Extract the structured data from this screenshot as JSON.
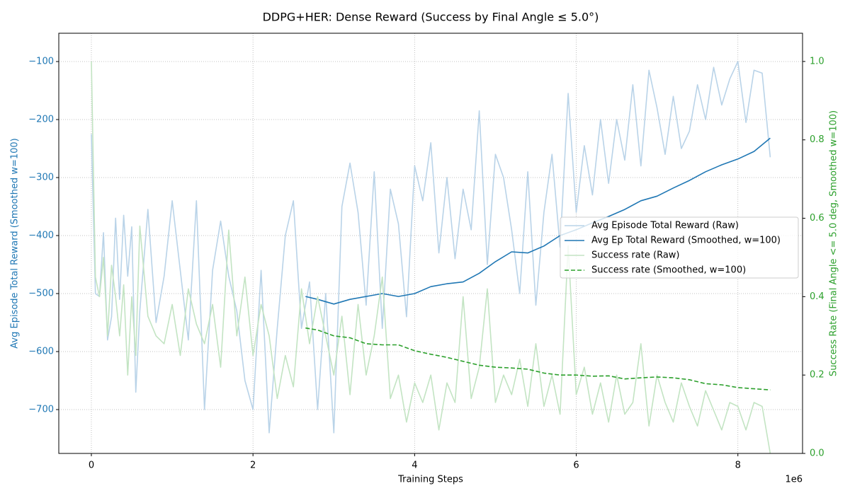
{
  "chart_data": {
    "type": "line",
    "title": "DDPG+HER: Dense Reward (Success by Final Angle ≤ 5.0°)",
    "x_label": "Training Steps",
    "x_offset_label": "1e6",
    "y_label": "Avg Episode Total Reward (Smoothed w=100)",
    "y2_label": "Success Rate (Final Angle <= 5.0 deg, Smoothed w=100)",
    "y_label_color": "#1f77b4",
    "y2_label_color": "#2ca02c",
    "grid": true,
    "legend": "center right",
    "xlim": [
      -403000,
      8800000
    ],
    "ylim": [
      -775.6,
      -51.2
    ],
    "y2lim": [
      0,
      1.072
    ],
    "xticks": [
      {
        "value": 0,
        "label": "0"
      },
      {
        "value": 2000000,
        "label": "2"
      },
      {
        "value": 4000000,
        "label": "4"
      },
      {
        "value": 6000000,
        "label": "6"
      },
      {
        "value": 8000000,
        "label": "8"
      }
    ],
    "yticks": [
      {
        "value": -700,
        "label": "−700"
      },
      {
        "value": -600,
        "label": "−600"
      },
      {
        "value": -500,
        "label": "−500"
      },
      {
        "value": -400,
        "label": "−400"
      },
      {
        "value": -300,
        "label": "−300"
      },
      {
        "value": -200,
        "label": "−200"
      },
      {
        "value": -100,
        "label": "−100"
      }
    ],
    "y2ticks": [
      {
        "value": 0,
        "label": "0.0"
      },
      {
        "value": 0.2,
        "label": "0.2"
      },
      {
        "value": 0.4,
        "label": "0.4"
      },
      {
        "value": 0.6,
        "label": "0.6"
      },
      {
        "value": 0.8,
        "label": "0.8"
      },
      {
        "value": 1,
        "label": "1.0"
      }
    ],
    "series": [
      {
        "name": "Avg Episode Total Reward (Raw)",
        "color": "#b9d3e8",
        "axis": "y",
        "linestyle": "solid",
        "x": [
          0,
          50000,
          100000,
          150000,
          200000,
          250000,
          300000,
          350000,
          400000,
          450000,
          500000,
          550000,
          600000,
          700000,
          800000,
          900000,
          1000000,
          1100000,
          1200000,
          1300000,
          1400000,
          1500000,
          1600000,
          1700000,
          1800000,
          1900000,
          2000000,
          2100000,
          2200000,
          2300000,
          2400000,
          2500000,
          2600000,
          2700000,
          2800000,
          2900000,
          3000000,
          3100000,
          3200000,
          3300000,
          3400000,
          3500000,
          3600000,
          3700000,
          3800000,
          3900000,
          4000000,
          4100000,
          4200000,
          4300000,
          4400000,
          4500000,
          4600000,
          4700000,
          4800000,
          4900000,
          5000000,
          5100000,
          5200000,
          5300000,
          5400000,
          5500000,
          5600000,
          5700000,
          5800000,
          5900000,
          6000000,
          6100000,
          6200000,
          6300000,
          6400000,
          6500000,
          6600000,
          6700000,
          6800000,
          6900000,
          7000000,
          7100000,
          7200000,
          7300000,
          7400000,
          7500000,
          7600000,
          7700000,
          7800000,
          7900000,
          8000000,
          8100000,
          8200000,
          8300000,
          8400000
        ],
        "values": [
          -225,
          -500,
          -505,
          -395,
          -580,
          -540,
          -370,
          -510,
          -365,
          -470,
          -385,
          -670,
          -530,
          -355,
          -550,
          -470,
          -340,
          -460,
          -580,
          -340,
          -700,
          -460,
          -375,
          -470,
          -530,
          -650,
          -700,
          -460,
          -740,
          -560,
          -400,
          -340,
          -560,
          -480,
          -700,
          -500,
          -740,
          -350,
          -275,
          -360,
          -520,
          -290,
          -560,
          -320,
          -380,
          -540,
          -280,
          -340,
          -240,
          -430,
          -300,
          -440,
          -320,
          -390,
          -185,
          -450,
          -260,
          -300,
          -390,
          -500,
          -290,
          -520,
          -360,
          -260,
          -420,
          -155,
          -360,
          -245,
          -330,
          -200,
          -310,
          -200,
          -270,
          -140,
          -280,
          -115,
          -180,
          -260,
          -160,
          -250,
          -220,
          -140,
          -200,
          -110,
          -175,
          -130,
          -100,
          -205,
          -115,
          -120,
          -265
        ]
      },
      {
        "name": "Avg Ep Total Reward (Smoothed, w=100)",
        "color": "#1f77b4",
        "axis": "y",
        "linestyle": "solid",
        "x": [
          2650000,
          2800000,
          3000000,
          3200000,
          3400000,
          3600000,
          3800000,
          4000000,
          4200000,
          4400000,
          4600000,
          4800000,
          5000000,
          5200000,
          5400000,
          5600000,
          5800000,
          6000000,
          6200000,
          6400000,
          6600000,
          6800000,
          7000000,
          7200000,
          7400000,
          7600000,
          7800000,
          8000000,
          8200000,
          8400000
        ],
        "values": [
          -505,
          -510,
          -518,
          -510,
          -505,
          -500,
          -505,
          -500,
          -488,
          -483,
          -480,
          -465,
          -445,
          -428,
          -430,
          -418,
          -400,
          -390,
          -378,
          -367,
          -355,
          -340,
          -332,
          -318,
          -305,
          -290,
          -278,
          -268,
          -255,
          -232
        ]
      },
      {
        "name": "Success rate (Raw)",
        "color": "#c3e4c3",
        "axis": "y2",
        "linestyle": "solid",
        "x": [
          0,
          50000,
          100000,
          150000,
          200000,
          250000,
          300000,
          350000,
          400000,
          450000,
          500000,
          550000,
          600000,
          700000,
          800000,
          900000,
          1000000,
          1100000,
          1200000,
          1300000,
          1400000,
          1500000,
          1600000,
          1700000,
          1800000,
          1900000,
          2000000,
          2100000,
          2200000,
          2300000,
          2400000,
          2500000,
          2600000,
          2700000,
          2800000,
          2900000,
          3000000,
          3100000,
          3200000,
          3300000,
          3400000,
          3500000,
          3600000,
          3700000,
          3800000,
          3900000,
          4000000,
          4100000,
          4200000,
          4300000,
          4400000,
          4500000,
          4600000,
          4700000,
          4800000,
          4900000,
          5000000,
          5100000,
          5200000,
          5300000,
          5400000,
          5500000,
          5600000,
          5700000,
          5800000,
          5900000,
          6000000,
          6100000,
          6200000,
          6300000,
          6400000,
          6500000,
          6600000,
          6700000,
          6800000,
          6900000,
          7000000,
          7100000,
          7200000,
          7300000,
          7400000,
          7500000,
          7600000,
          7700000,
          7800000,
          7900000,
          8000000,
          8100000,
          8200000,
          8300000,
          8400000
        ],
        "values": [
          1.0,
          0.45,
          0.4,
          0.5,
          0.3,
          0.48,
          0.4,
          0.3,
          0.43,
          0.2,
          0.4,
          0.25,
          0.58,
          0.35,
          0.3,
          0.28,
          0.38,
          0.25,
          0.42,
          0.33,
          0.28,
          0.38,
          0.22,
          0.57,
          0.3,
          0.45,
          0.25,
          0.38,
          0.3,
          0.14,
          0.25,
          0.17,
          0.42,
          0.28,
          0.4,
          0.3,
          0.2,
          0.35,
          0.15,
          0.38,
          0.2,
          0.3,
          0.45,
          0.14,
          0.2,
          0.08,
          0.18,
          0.13,
          0.2,
          0.06,
          0.18,
          0.13,
          0.4,
          0.14,
          0.22,
          0.42,
          0.13,
          0.2,
          0.15,
          0.24,
          0.12,
          0.28,
          0.12,
          0.2,
          0.1,
          0.53,
          0.15,
          0.22,
          0.1,
          0.18,
          0.08,
          0.2,
          0.1,
          0.13,
          0.28,
          0.07,
          0.2,
          0.13,
          0.08,
          0.18,
          0.12,
          0.07,
          0.16,
          0.11,
          0.06,
          0.13,
          0.12,
          0.06,
          0.13,
          0.12,
          0.0
        ]
      },
      {
        "name": "Success rate (Smoothed, w=100)",
        "color": "#2ca02c",
        "axis": "y2",
        "linestyle": "dashed",
        "x": [
          2650000,
          2800000,
          3000000,
          3200000,
          3400000,
          3600000,
          3800000,
          4000000,
          4200000,
          4400000,
          4600000,
          4800000,
          5000000,
          5200000,
          5400000,
          5600000,
          5800000,
          6000000,
          6200000,
          6400000,
          6600000,
          6800000,
          7000000,
          7200000,
          7400000,
          7600000,
          7800000,
          8000000,
          8200000,
          8400000
        ],
        "values": [
          0.32,
          0.315,
          0.3,
          0.295,
          0.28,
          0.277,
          0.277,
          0.262,
          0.253,
          0.245,
          0.235,
          0.225,
          0.22,
          0.218,
          0.215,
          0.205,
          0.2,
          0.2,
          0.197,
          0.198,
          0.19,
          0.193,
          0.195,
          0.193,
          0.188,
          0.178,
          0.175,
          0.168,
          0.165,
          0.162
        ]
      }
    ]
  }
}
